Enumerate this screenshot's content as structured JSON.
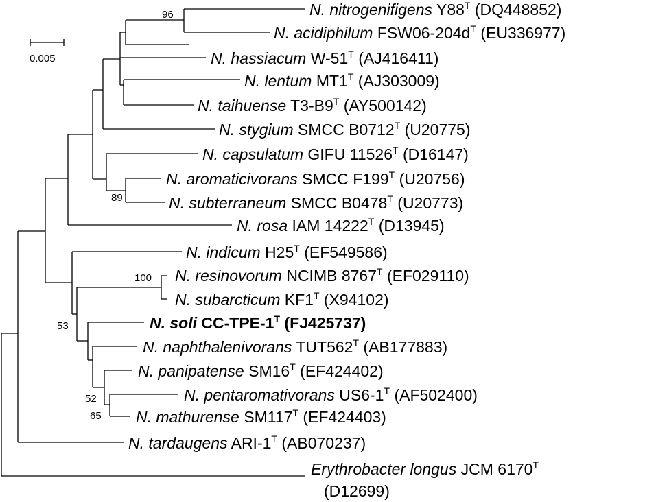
{
  "scale_bar": {
    "label": "0.005"
  },
  "bootstrap": {
    "b96": "96",
    "b89": "89",
    "b100": "100",
    "b53": "53",
    "b52": "52",
    "b65": "65"
  },
  "taxa": [
    {
      "species": "N. nitrogenifigens",
      "strain": "Y88",
      "type": "T",
      "acc": "(DQ448852)"
    },
    {
      "species": "N. acidiphilum",
      "strain": "FSW06-204d",
      "type": "T",
      "acc": "(EU336977)"
    },
    {
      "species": "N. hassiacum",
      "strain": "W-51",
      "type": "T",
      "acc": "(AJ416411)"
    },
    {
      "species": "N. lentum",
      "strain": "MT1",
      "type": "T",
      "acc": "(AJ303009)"
    },
    {
      "species": "N. taihuense",
      "strain": "T3-B9",
      "type": "T",
      "acc": "(AY500142)"
    },
    {
      "species": "N. stygium",
      "strain": "SMCC B0712",
      "type": "T",
      "acc": "(U20775)"
    },
    {
      "species": "N. capsulatum",
      "strain": "GIFU 11526",
      "type": "T",
      "acc": "(D16147)"
    },
    {
      "species": "N. aromaticivorans",
      "strain": "SMCC F199",
      "type": "T",
      "acc": "(U20756)"
    },
    {
      "species": "N. subterraneum",
      "strain": "SMCC B0478",
      "type": "T",
      "acc": "(U20773)"
    },
    {
      "species": "N. rosa",
      "strain": "IAM 14222",
      "type": "T",
      "acc": "(D13945)"
    },
    {
      "species": "N. indicum",
      "strain": "H25",
      "type": "T",
      "acc": "(EF549586)"
    },
    {
      "species": "N. resinovorum",
      "strain": "NCIMB 8767",
      "type": "T",
      "acc": "(EF029110)"
    },
    {
      "species": "N. subarcticum",
      "strain": "KF1",
      "type": "T",
      "acc": "(X94102)"
    },
    {
      "species": "N. soli",
      "strain": "CC-TPE-1",
      "type": "T",
      "acc": "(FJ425737)"
    },
    {
      "species": "N. naphthalenivorans",
      "strain": "TUT562",
      "type": "T",
      "acc": "(AB177883)"
    },
    {
      "species": "N. panipatense",
      "strain": "SM16",
      "type": "T",
      "acc": "(EF424402)"
    },
    {
      "species": "N. pentaromativorans",
      "strain": "US6-1",
      "type": "T",
      "acc": "(AF502400)"
    },
    {
      "species": "N. mathurense",
      "strain": "SM117",
      "type": "T",
      "acc": "(EF424403)"
    },
    {
      "species": "N. tardaugens",
      "strain": "ARI-1",
      "type": "T",
      "acc": "(AB070237)"
    },
    {
      "species": "Erythrobacter longus",
      "strain": "JCM 6170",
      "type": "T",
      "acc": "(D12699)"
    }
  ]
}
